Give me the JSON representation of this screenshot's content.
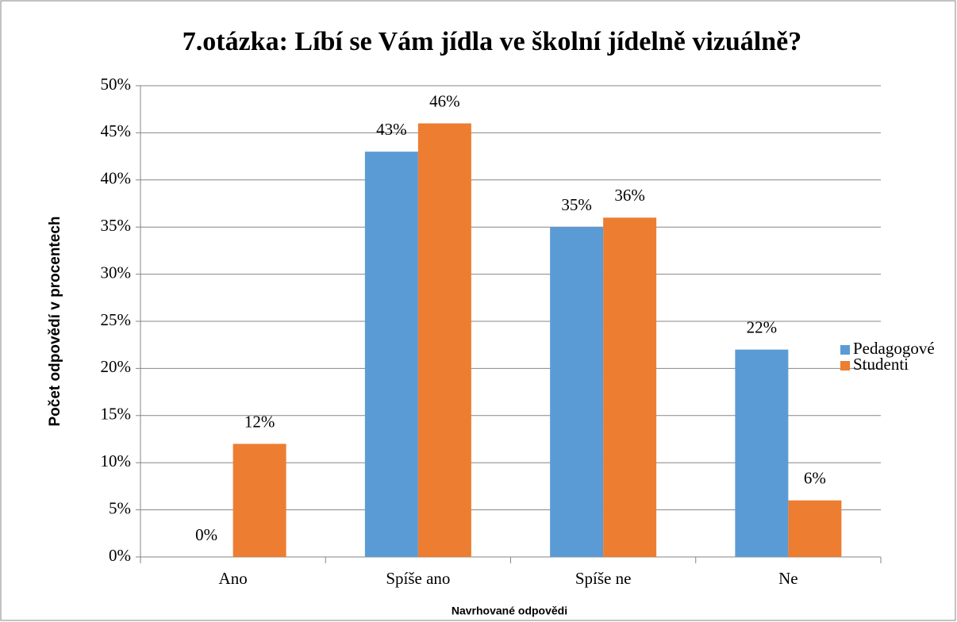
{
  "chart_data": {
    "type": "bar",
    "title": "7.otázka: Líbí se Vám jídla ve školní jídelně vizuálně?",
    "x_label": "Navrhované odpovědi",
    "y_label": "Počet odpovědí v procentech",
    "categories": [
      "Ano",
      "Spíše ano",
      "Spíše ne",
      "Ne"
    ],
    "series": [
      {
        "name": "Pedagogové",
        "color": "#5b9bd5",
        "values": [
          0,
          43,
          35,
          22
        ],
        "value_labels": [
          "0%",
          "43%",
          "35%",
          "22%"
        ]
      },
      {
        "name": "Studenti",
        "color": "#ed7d31",
        "values": [
          12,
          46,
          36,
          6
        ],
        "value_labels": [
          "12%",
          "46%",
          "36%",
          "6%"
        ]
      }
    ],
    "ylim": [
      0,
      50
    ],
    "yticks": [
      {
        "value": 0,
        "label": "0%"
      },
      {
        "value": 5,
        "label": "5%"
      },
      {
        "value": 10,
        "label": "10%"
      },
      {
        "value": 15,
        "label": "15%"
      },
      {
        "value": 20,
        "label": "20%"
      },
      {
        "value": 25,
        "label": "25%"
      },
      {
        "value": 30,
        "label": "30%"
      },
      {
        "value": 35,
        "label": "35%"
      },
      {
        "value": 40,
        "label": "40%"
      },
      {
        "value": 45,
        "label": "45%"
      },
      {
        "value": 50,
        "label": "50%"
      }
    ],
    "grid": true,
    "legend": "right"
  }
}
